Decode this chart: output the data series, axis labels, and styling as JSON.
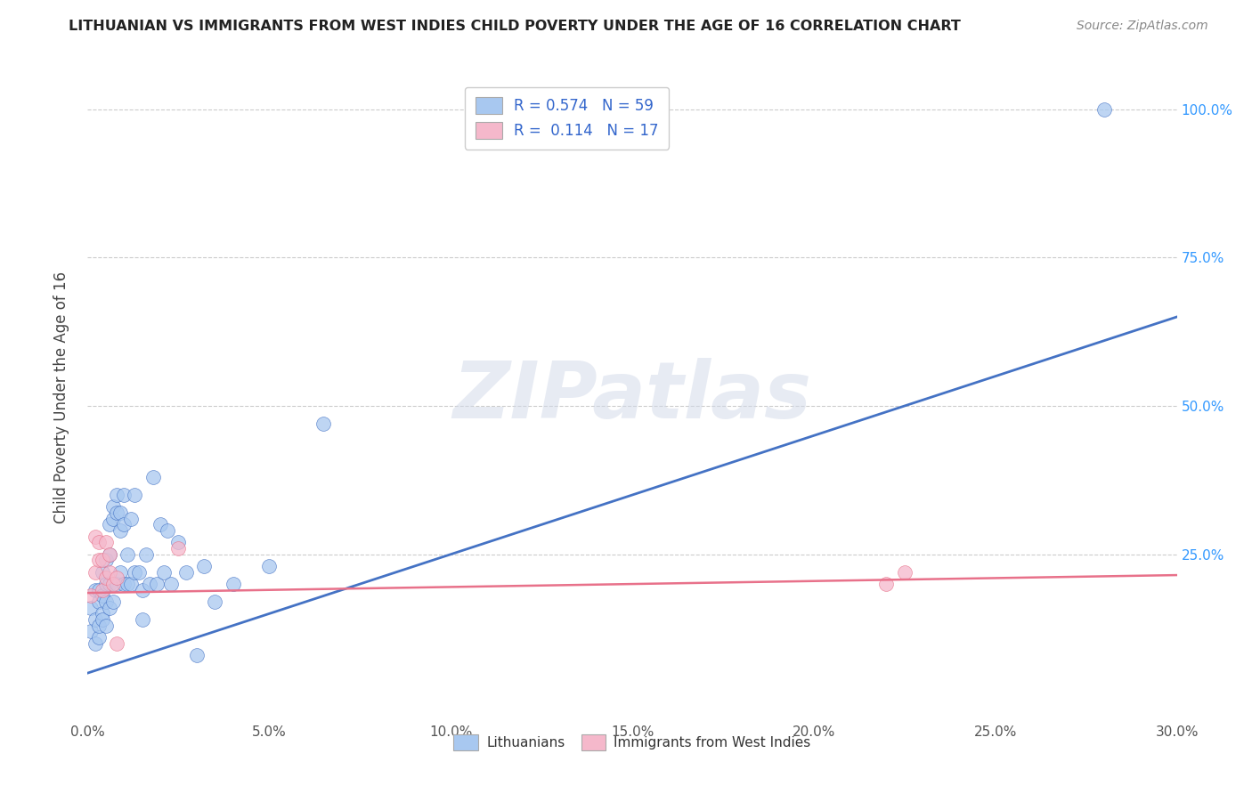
{
  "title": "LITHUANIAN VS IMMIGRANTS FROM WEST INDIES CHILD POVERTY UNDER THE AGE OF 16 CORRELATION CHART",
  "source": "Source: ZipAtlas.com",
  "ylabel": "Child Poverty Under the Age of 16",
  "xlim": [
    0,
    0.3
  ],
  "ylim": [
    -0.02,
    1.05
  ],
  "legend_R1": "0.574",
  "legend_N1": "59",
  "legend_R2": "0.114",
  "legend_N2": "17",
  "blue_color": "#A8C8F0",
  "pink_color": "#F5B8CB",
  "line_blue": "#4472C4",
  "line_pink": "#E8718A",
  "watermark_text": "ZIPatlas",
  "blue_x": [
    0.001,
    0.001,
    0.002,
    0.002,
    0.002,
    0.003,
    0.003,
    0.003,
    0.003,
    0.004,
    0.004,
    0.004,
    0.004,
    0.005,
    0.005,
    0.005,
    0.005,
    0.006,
    0.006,
    0.006,
    0.006,
    0.007,
    0.007,
    0.007,
    0.008,
    0.008,
    0.008,
    0.009,
    0.009,
    0.009,
    0.01,
    0.01,
    0.01,
    0.011,
    0.011,
    0.012,
    0.012,
    0.013,
    0.013,
    0.014,
    0.015,
    0.015,
    0.016,
    0.017,
    0.018,
    0.019,
    0.02,
    0.021,
    0.022,
    0.023,
    0.025,
    0.027,
    0.03,
    0.032,
    0.035,
    0.04,
    0.05,
    0.065,
    0.28
  ],
  "blue_y": [
    0.12,
    0.16,
    0.1,
    0.14,
    0.19,
    0.11,
    0.17,
    0.19,
    0.13,
    0.15,
    0.14,
    0.18,
    0.22,
    0.13,
    0.17,
    0.2,
    0.24,
    0.16,
    0.2,
    0.25,
    0.3,
    0.17,
    0.31,
    0.33,
    0.2,
    0.32,
    0.35,
    0.22,
    0.29,
    0.32,
    0.2,
    0.3,
    0.35,
    0.2,
    0.25,
    0.2,
    0.31,
    0.22,
    0.35,
    0.22,
    0.14,
    0.19,
    0.25,
    0.2,
    0.38,
    0.2,
    0.3,
    0.22,
    0.29,
    0.2,
    0.27,
    0.22,
    0.08,
    0.23,
    0.17,
    0.2,
    0.23,
    0.47,
    1.0
  ],
  "pink_x": [
    0.001,
    0.002,
    0.002,
    0.003,
    0.003,
    0.004,
    0.004,
    0.005,
    0.005,
    0.006,
    0.006,
    0.007,
    0.008,
    0.008,
    0.025,
    0.22,
    0.225
  ],
  "pink_y": [
    0.18,
    0.22,
    0.28,
    0.24,
    0.27,
    0.19,
    0.24,
    0.21,
    0.27,
    0.22,
    0.25,
    0.2,
    0.21,
    0.1,
    0.26,
    0.2,
    0.22
  ],
  "line_blue_x0": 0.0,
  "line_blue_y0": 0.05,
  "line_blue_x1": 0.3,
  "line_blue_y1": 0.65,
  "line_pink_x0": 0.0,
  "line_pink_y0": 0.185,
  "line_pink_x1": 0.3,
  "line_pink_y1": 0.215
}
